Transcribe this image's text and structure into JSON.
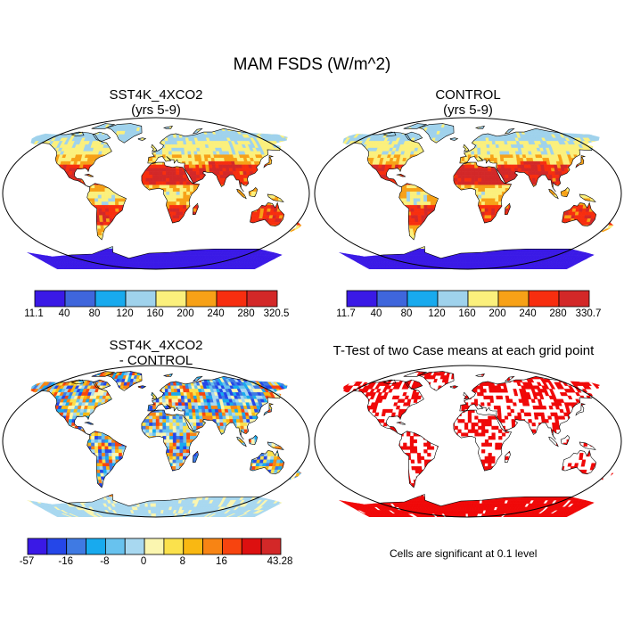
{
  "title": "MAM FSDS (W/m^2)",
  "panels": [
    {
      "line1": "SST4K_4XCO2",
      "line2": "(yrs 5-9)"
    },
    {
      "line1": "CONTROL",
      "line2": "(yrs 5-9)"
    },
    {
      "line1": "SST4K_4XCO2",
      "line2": "- CONTROL"
    },
    {
      "line1": "T-Test of two Case means at each grid point",
      "line2": ""
    }
  ],
  "colorbars": [
    {
      "colors": [
        "#3a19e6",
        "#3f66dc",
        "#18aaee",
        "#9fd2ec",
        "#fbf07c",
        "#f7a117",
        "#f72e0f",
        "#d32828"
      ],
      "labels": [
        "11.1",
        "40",
        "80",
        "120",
        "160",
        "200",
        "240",
        "280",
        "320.5"
      ]
    },
    {
      "colors": [
        "#3a19e6",
        "#3f66dc",
        "#18aaee",
        "#9fd2ec",
        "#fbf07c",
        "#f7a117",
        "#f72e0f",
        "#d32828"
      ],
      "labels": [
        "11.7",
        "40",
        "80",
        "120",
        "160",
        "200",
        "240",
        "280",
        "330.7"
      ]
    },
    {
      "colors": [
        "#3a19e6",
        "#2547e8",
        "#3f7ae3",
        "#18aaee",
        "#68c2ee",
        "#a8d8f0",
        "#fbf6b0",
        "#fbe14c",
        "#f9b812",
        "#f78414",
        "#f7440f",
        "#dd1010",
        "#d32828"
      ],
      "labels": [
        "-57",
        "",
        "-16",
        "",
        "-8",
        "",
        "0",
        "",
        "8",
        "",
        "16",
        "",
        "",
        "43.28"
      ]
    }
  ],
  "significance_note": "Cells are significant at 0.1 level",
  "colors": {
    "significant": "#f00808",
    "ocean": "#ffffff",
    "coast": "#000000"
  }
}
